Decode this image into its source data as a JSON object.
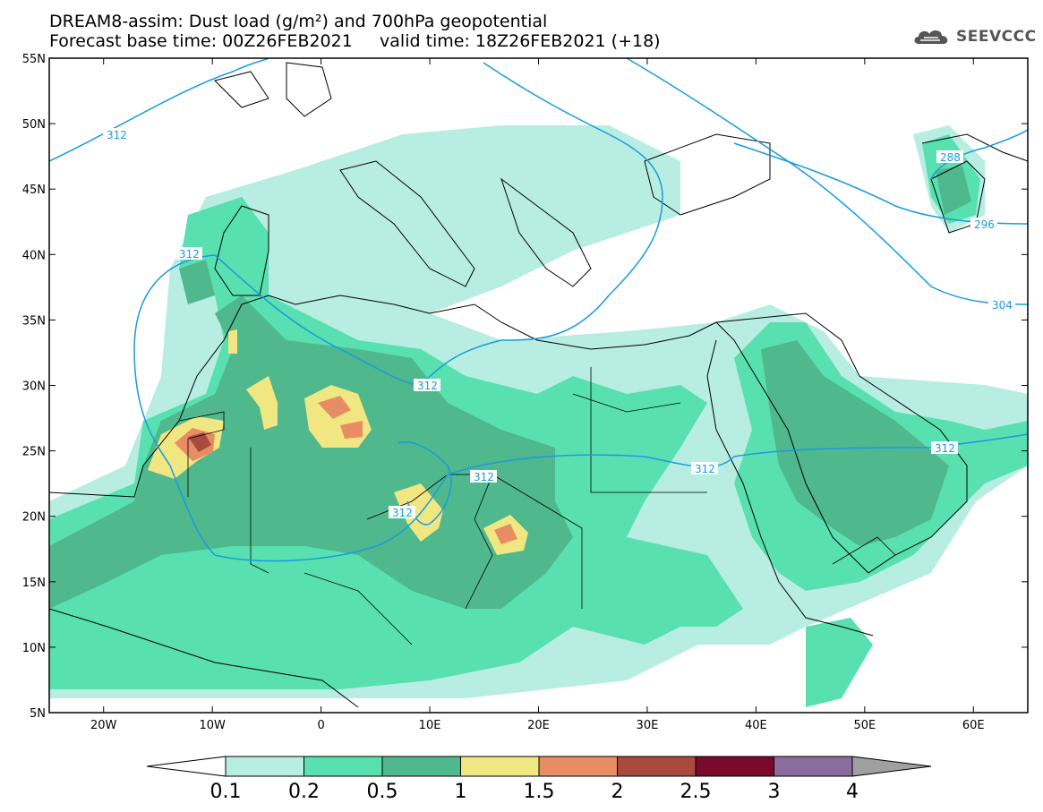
{
  "title": {
    "line1": "DREAM8-assim: Dust load (g/m²) and 700hPa geopotential",
    "line2": "Forecast base time: 00Z26FEB2021     valid time: 18Z26FEB2021 (+18)"
  },
  "logo": {
    "text": "SEEVCCC",
    "icon": "cloud-logo-icon"
  },
  "axes": {
    "lat_labels": [
      "55N",
      "50N",
      "45N",
      "40N",
      "35N",
      "30N",
      "25N",
      "20N",
      "15N",
      "10N",
      "5N"
    ],
    "lon_labels": [
      "20W",
      "10W",
      "0",
      "10E",
      "20E",
      "30E",
      "40E",
      "50E",
      "60E"
    ],
    "lat_values": [
      55,
      50,
      45,
      40,
      35,
      30,
      25,
      20,
      15,
      10,
      5
    ],
    "lon_values": [
      -20,
      -10,
      0,
      10,
      20,
      30,
      40,
      50,
      60
    ],
    "lat_range": [
      5,
      55
    ],
    "lon_range": [
      -25,
      65
    ]
  },
  "contours": {
    "labels": [
      "312",
      "312",
      "312",
      "312",
      "312",
      "312",
      "288",
      "296",
      "304"
    ],
    "color": "#1a9be0"
  },
  "colorbar": {
    "levels": [
      "0.1",
      "0.2",
      "0.5",
      "1",
      "1.5",
      "2",
      "2.5",
      "3",
      "4"
    ],
    "colors": [
      "#ffffff",
      "#b8ede1",
      "#59e0b0",
      "#4fb88c",
      "#f0e682",
      "#e88c64",
      "#a84a3c",
      "#7a0a2c",
      "#8c6c9c",
      "#a0a0a0"
    ]
  }
}
